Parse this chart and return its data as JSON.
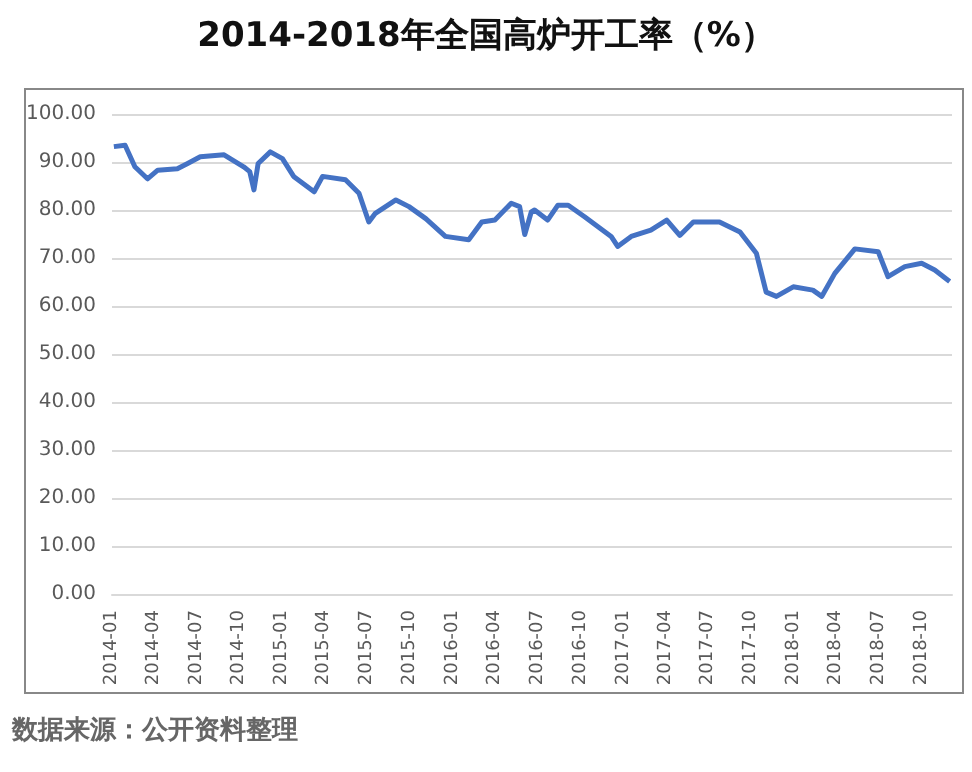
{
  "chart_data": {
    "type": "line",
    "title": "2014-2018年全国高炉开工率（%）",
    "x": [
      "2014-01-05",
      "2014-01-29",
      "2014-02-19",
      "2014-03-18",
      "2014-04-09",
      "2014-05-21",
      "2014-06-12",
      "2014-07-09",
      "2014-08-29",
      "2014-10-10",
      "2014-10-23",
      "2014-11-01",
      "2014-11-10",
      "2014-12-06",
      "2015-01-01",
      "2015-01-25",
      "2015-03-10",
      "2015-03-28",
      "2015-05-16",
      "2015-06-14",
      "2015-07-05",
      "2015-07-19",
      "2015-09-01",
      "2015-09-29",
      "2015-11-04",
      "2015-12-16",
      "2016-02-04",
      "2016-03-03",
      "2016-03-31",
      "2016-05-05",
      "2016-05-23",
      "2016-06-03",
      "2016-06-17",
      "2016-06-24",
      "2016-07-22",
      "2016-08-13",
      "2016-09-04",
      "2016-10-09",
      "2016-12-05",
      "2016-12-19",
      "2017-01-17",
      "2017-02-28",
      "2017-04-03",
      "2017-05-01",
      "2017-05-30",
      "2017-07-25",
      "2017-09-07",
      "2017-10-12",
      "2017-11-02",
      "2017-11-24",
      "2017-12-30",
      "2018-02-10",
      "2018-03-01",
      "2018-03-29",
      "2018-05-11",
      "2018-06-30",
      "2018-07-21",
      "2018-08-26",
      "2018-10-01",
      "2018-10-29",
      "2018-11-30"
    ],
    "series": [
      {
        "color": "#4472c4",
        "values": [
          93.2,
          93.5,
          89.0,
          86.5,
          88.3,
          88.6,
          89.7,
          91.1,
          91.5,
          89.0,
          88.0,
          84.2,
          89.7,
          92.1,
          90.7,
          87.0,
          83.8,
          87.0,
          86.3,
          83.5,
          77.5,
          79.3,
          82.1,
          80.7,
          78.2,
          74.5,
          73.8,
          77.5,
          77.9,
          81.4,
          80.7,
          74.9,
          79.6,
          80.0,
          77.9,
          81.0,
          81.0,
          78.6,
          74.5,
          72.4,
          74.5,
          75.8,
          77.9,
          74.7,
          77.5,
          77.5,
          75.4,
          71.0,
          62.9,
          62.0,
          64.0,
          63.3,
          62.0,
          66.8,
          71.9,
          71.3,
          66.1,
          68.2,
          68.9,
          67.5,
          65.1
        ]
      }
    ],
    "xlim": [
      "2014-01",
      "2018-12-05"
    ],
    "xticks": [
      "2014-01",
      "2014-04",
      "2014-07",
      "2014-10",
      "2015-01",
      "2015-04",
      "2015-07",
      "2015-10",
      "2016-01",
      "2016-04",
      "2016-07",
      "2016-10",
      "2017-01",
      "2017-04",
      "2017-07",
      "2017-10",
      "2018-01",
      "2018-04",
      "2018-07",
      "2018-10"
    ],
    "ylim": [
      0,
      100
    ],
    "yticks": [
      {
        "value": 0,
        "label": "0.00"
      },
      {
        "value": 10,
        "label": "10.00"
      },
      {
        "value": 20,
        "label": "20.00"
      },
      {
        "value": 30,
        "label": "30.00"
      },
      {
        "value": 40,
        "label": "40.00"
      },
      {
        "value": 50,
        "label": "50.00"
      },
      {
        "value": 60,
        "label": "60.00"
      },
      {
        "value": 70,
        "label": "70.00"
      },
      {
        "value": 80,
        "label": "80.00"
      },
      {
        "value": 90,
        "label": "90.00"
      },
      {
        "value": 100,
        "label": "100.00"
      }
    ],
    "grid": "y",
    "marker": "none",
    "line_style": "solid",
    "annotations": [
      "数据来源：公开资料整理"
    ]
  }
}
